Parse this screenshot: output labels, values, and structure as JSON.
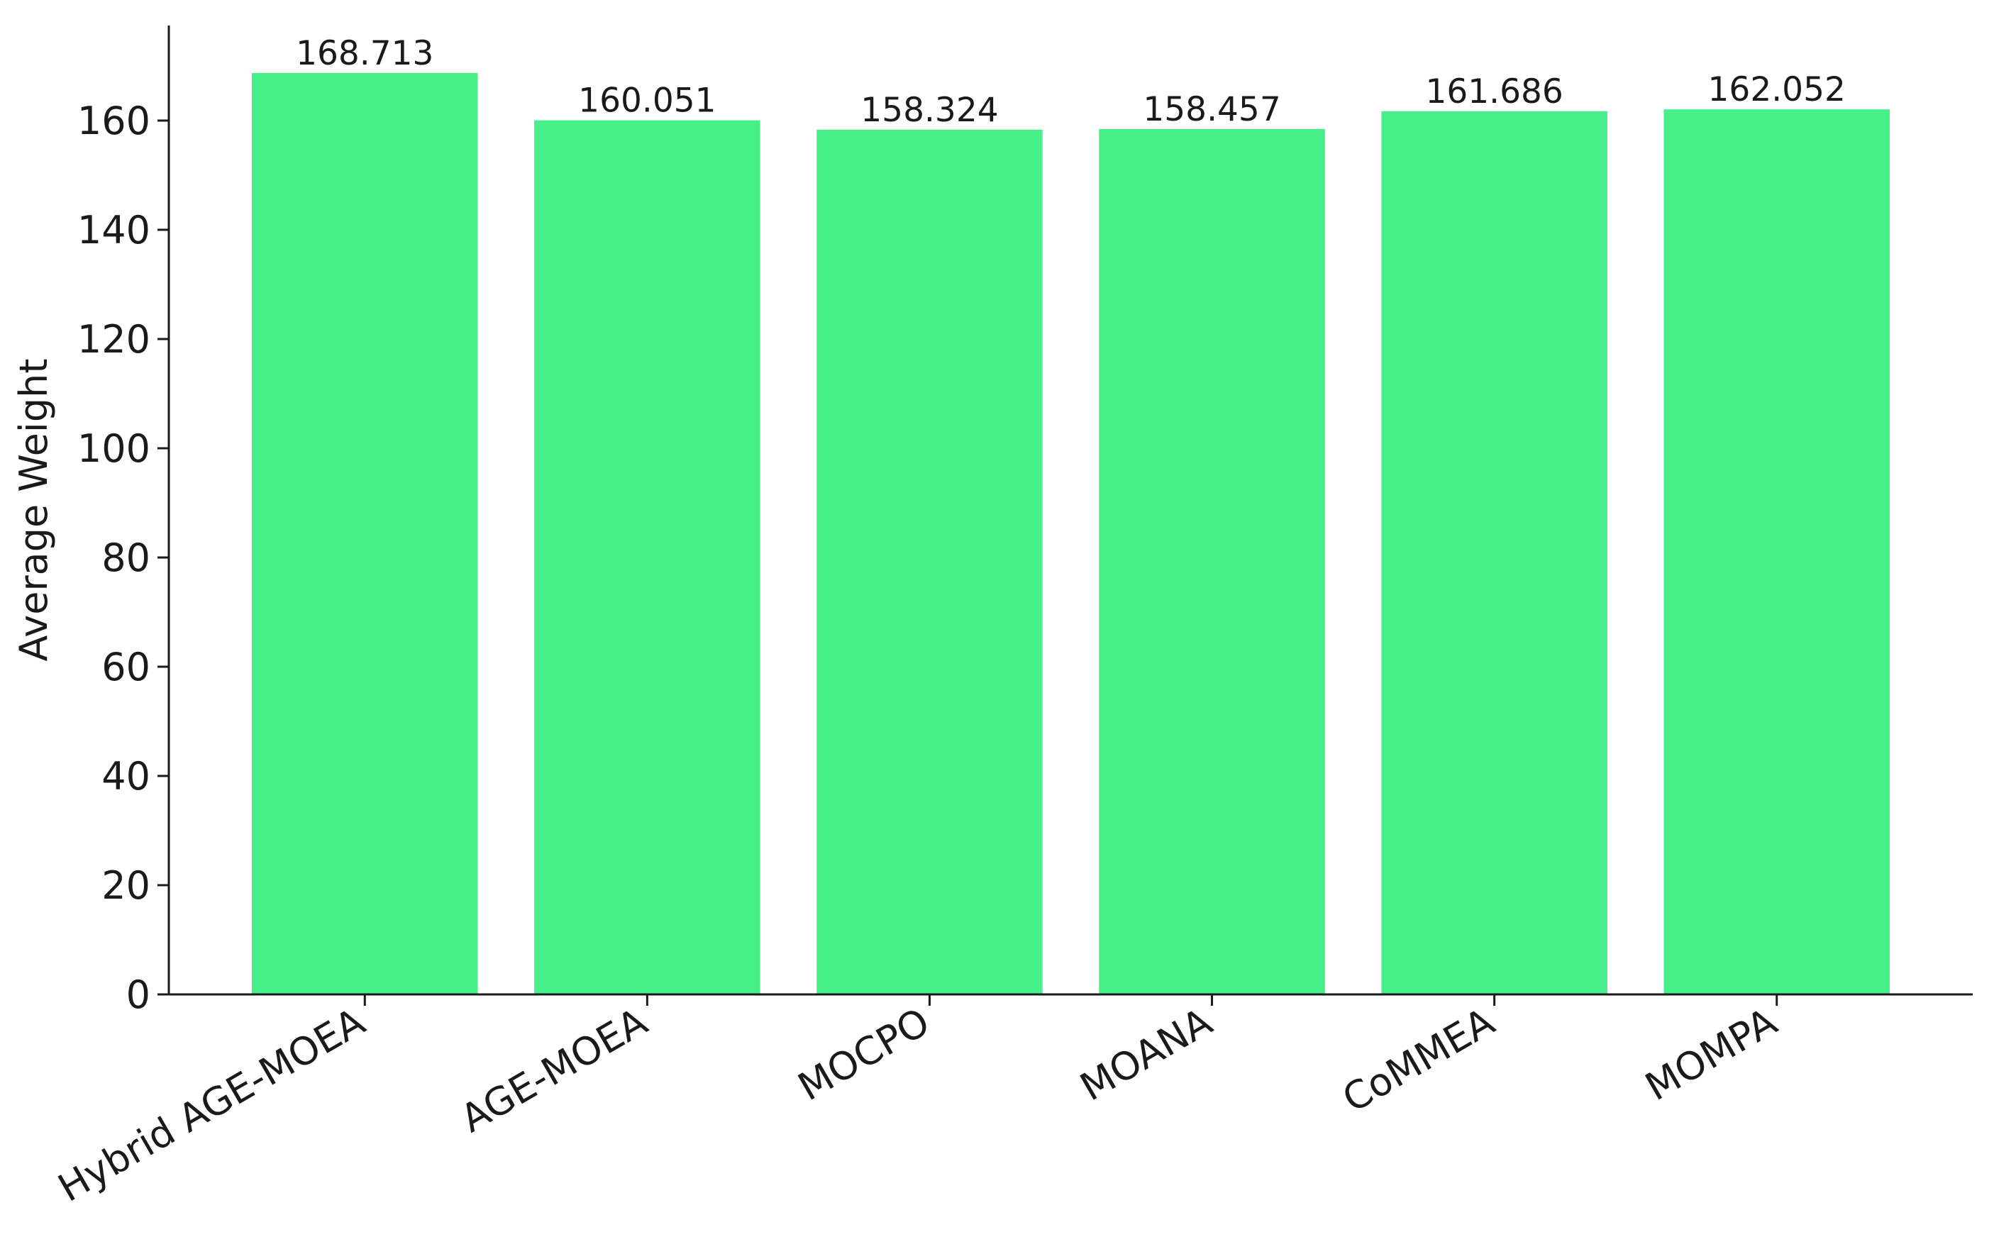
{
  "chart_data": {
    "type": "bar",
    "y_label": "Average Weight",
    "categories": [
      "Hybrid AGE-MOEA",
      "AGE-MOEA",
      "MOCPO",
      "MOANA",
      "CoMMEA",
      "MOMPA"
    ],
    "values": [
      168.713,
      160.051,
      158.324,
      158.457,
      161.686,
      162.052
    ],
    "color": "#47ef8a",
    "ylim": [
      0,
      177.4
    ],
    "yticks": [
      0,
      20,
      40,
      60,
      80,
      100,
      120,
      140,
      160
    ],
    "grid": false
  }
}
